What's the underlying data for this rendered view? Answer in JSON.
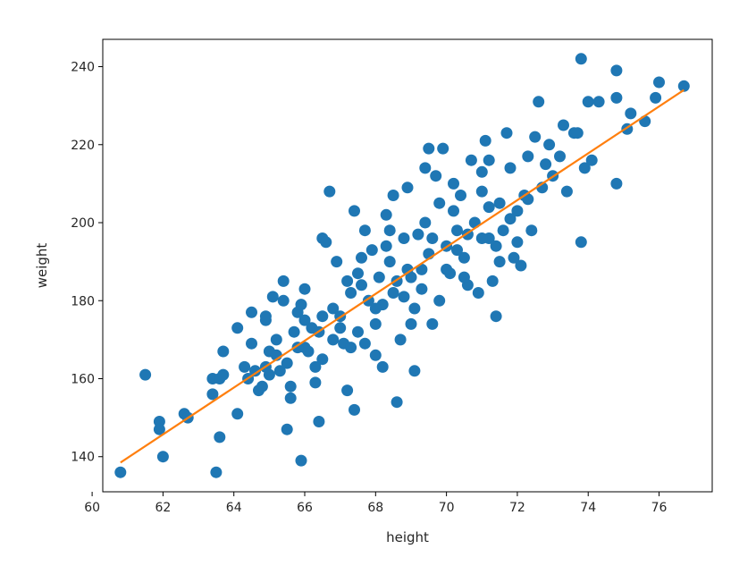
{
  "chart_data": {
    "type": "scatter",
    "title": "",
    "xlabel": "height",
    "ylabel": "weight",
    "xlim": [
      60.3,
      77.5
    ],
    "ylim": [
      131,
      247
    ],
    "xticks": [
      60,
      62,
      64,
      66,
      68,
      70,
      72,
      74,
      76
    ],
    "yticks": [
      140,
      160,
      180,
      200,
      220,
      240
    ],
    "grid": false,
    "colors": {
      "points": "#1f77b4",
      "fit_line": "#ff7f0e",
      "axes": "#000000"
    },
    "series": [
      {
        "kind": "scatter",
        "points": [
          [
            60.8,
            136
          ],
          [
            61.5,
            161
          ],
          [
            61.9,
            149
          ],
          [
            61.9,
            147
          ],
          [
            62.0,
            140
          ],
          [
            62.6,
            151
          ],
          [
            62.7,
            150
          ],
          [
            63.4,
            160
          ],
          [
            63.5,
            136
          ],
          [
            63.4,
            156
          ],
          [
            63.6,
            145
          ],
          [
            63.7,
            167
          ],
          [
            63.6,
            160
          ],
          [
            63.7,
            161
          ],
          [
            64.1,
            151
          ],
          [
            64.1,
            173
          ],
          [
            64.3,
            163
          ],
          [
            64.5,
            177
          ],
          [
            64.4,
            160
          ],
          [
            64.5,
            169
          ],
          [
            64.6,
            162
          ],
          [
            64.7,
            157
          ],
          [
            64.8,
            158
          ],
          [
            64.9,
            163
          ],
          [
            64.9,
            175
          ],
          [
            64.9,
            176
          ],
          [
            65.0,
            167
          ],
          [
            65.0,
            161
          ],
          [
            65.1,
            181
          ],
          [
            65.2,
            170
          ],
          [
            65.2,
            166
          ],
          [
            65.3,
            162
          ],
          [
            65.4,
            185
          ],
          [
            65.4,
            180
          ],
          [
            65.5,
            164
          ],
          [
            65.6,
            158
          ],
          [
            65.6,
            155
          ],
          [
            65.5,
            147
          ],
          [
            65.7,
            172
          ],
          [
            65.8,
            177
          ],
          [
            65.9,
            179
          ],
          [
            65.9,
            139
          ],
          [
            66.0,
            183
          ],
          [
            66.0,
            168
          ],
          [
            66.1,
            167
          ],
          [
            66.2,
            173
          ],
          [
            66.3,
            159
          ],
          [
            66.3,
            163
          ],
          [
            66.4,
            149
          ],
          [
            66.5,
            176
          ],
          [
            66.5,
            196
          ],
          [
            66.6,
            195
          ],
          [
            66.7,
            208
          ],
          [
            66.8,
            178
          ],
          [
            66.9,
            190
          ],
          [
            67.0,
            173
          ],
          [
            67.1,
            169
          ],
          [
            67.2,
            157
          ],
          [
            67.2,
            185
          ],
          [
            67.3,
            182
          ],
          [
            67.4,
            203
          ],
          [
            67.4,
            152
          ],
          [
            67.5,
            187
          ],
          [
            67.6,
            191
          ],
          [
            67.7,
            169
          ],
          [
            67.8,
            180
          ],
          [
            67.9,
            193
          ],
          [
            68.0,
            174
          ],
          [
            68.0,
            166
          ],
          [
            68.1,
            186
          ],
          [
            68.2,
            163
          ],
          [
            68.3,
            194
          ],
          [
            68.4,
            198
          ],
          [
            68.5,
            207
          ],
          [
            68.5,
            182
          ],
          [
            68.6,
            154
          ],
          [
            68.7,
            170
          ],
          [
            68.8,
            196
          ],
          [
            68.9,
            188
          ],
          [
            69.0,
            186
          ],
          [
            69.1,
            178
          ],
          [
            69.1,
            162
          ],
          [
            69.2,
            197
          ],
          [
            69.3,
            183
          ],
          [
            69.4,
            200
          ],
          [
            69.5,
            219
          ],
          [
            69.5,
            192
          ],
          [
            69.6,
            174
          ],
          [
            69.7,
            212
          ],
          [
            69.8,
            205
          ],
          [
            69.9,
            219
          ],
          [
            70.0,
            194
          ],
          [
            70.1,
            187
          ],
          [
            70.2,
            203
          ],
          [
            70.3,
            198
          ],
          [
            70.4,
            207
          ],
          [
            70.5,
            191
          ],
          [
            70.6,
            184
          ],
          [
            70.7,
            216
          ],
          [
            70.8,
            200
          ],
          [
            70.9,
            182
          ],
          [
            71.0,
            208
          ],
          [
            71.0,
            213
          ],
          [
            71.1,
            221
          ],
          [
            71.2,
            196
          ],
          [
            71.3,
            185
          ],
          [
            71.4,
            194
          ],
          [
            71.4,
            176
          ],
          [
            71.5,
            205
          ],
          [
            71.6,
            198
          ],
          [
            71.7,
            223
          ],
          [
            71.8,
            214
          ],
          [
            71.9,
            191
          ],
          [
            72.0,
            203
          ],
          [
            72.1,
            189
          ],
          [
            72.2,
            207
          ],
          [
            72.3,
            217
          ],
          [
            72.4,
            198
          ],
          [
            72.5,
            222
          ],
          [
            72.6,
            231
          ],
          [
            72.7,
            209
          ],
          [
            72.8,
            215
          ],
          [
            72.9,
            220
          ],
          [
            73.0,
            212
          ],
          [
            73.2,
            217
          ],
          [
            73.3,
            225
          ],
          [
            73.4,
            208
          ],
          [
            73.6,
            223
          ],
          [
            73.7,
            223
          ],
          [
            73.8,
            195
          ],
          [
            73.8,
            242
          ],
          [
            73.9,
            214
          ],
          [
            74.0,
            231
          ],
          [
            74.1,
            216
          ],
          [
            74.3,
            231
          ],
          [
            74.8,
            239
          ],
          [
            74.8,
            232
          ],
          [
            74.8,
            210
          ],
          [
            75.1,
            224
          ],
          [
            75.2,
            228
          ],
          [
            75.6,
            226
          ],
          [
            75.9,
            232
          ],
          [
            76.0,
            236
          ],
          [
            76.7,
            235
          ],
          [
            66.5,
            165
          ],
          [
            67.0,
            176
          ],
          [
            67.5,
            172
          ],
          [
            68.2,
            179
          ],
          [
            68.8,
            181
          ],
          [
            69.3,
            188
          ],
          [
            70.0,
            188
          ],
          [
            70.6,
            197
          ],
          [
            71.2,
            204
          ],
          [
            71.8,
            201
          ],
          [
            72.3,
            206
          ],
          [
            66.0,
            175
          ],
          [
            66.8,
            170
          ],
          [
            67.6,
            184
          ],
          [
            68.4,
            190
          ],
          [
            69.6,
            196
          ],
          [
            70.3,
            193
          ],
          [
            71.0,
            196
          ],
          [
            65.8,
            168
          ],
          [
            66.4,
            172
          ],
          [
            67.3,
            168
          ],
          [
            68.0,
            178
          ],
          [
            68.6,
            185
          ],
          [
            69.0,
            174
          ],
          [
            69.8,
            180
          ],
          [
            70.5,
            186
          ],
          [
            71.5,
            190
          ],
          [
            72.0,
            195
          ],
          [
            67.7,
            198
          ],
          [
            68.3,
            202
          ],
          [
            68.9,
            209
          ],
          [
            69.4,
            214
          ],
          [
            70.2,
            210
          ],
          [
            71.2,
            216
          ]
        ]
      },
      {
        "kind": "line",
        "points": [
          [
            60.8,
            138.5
          ],
          [
            76.7,
            234
          ]
        ]
      }
    ]
  }
}
